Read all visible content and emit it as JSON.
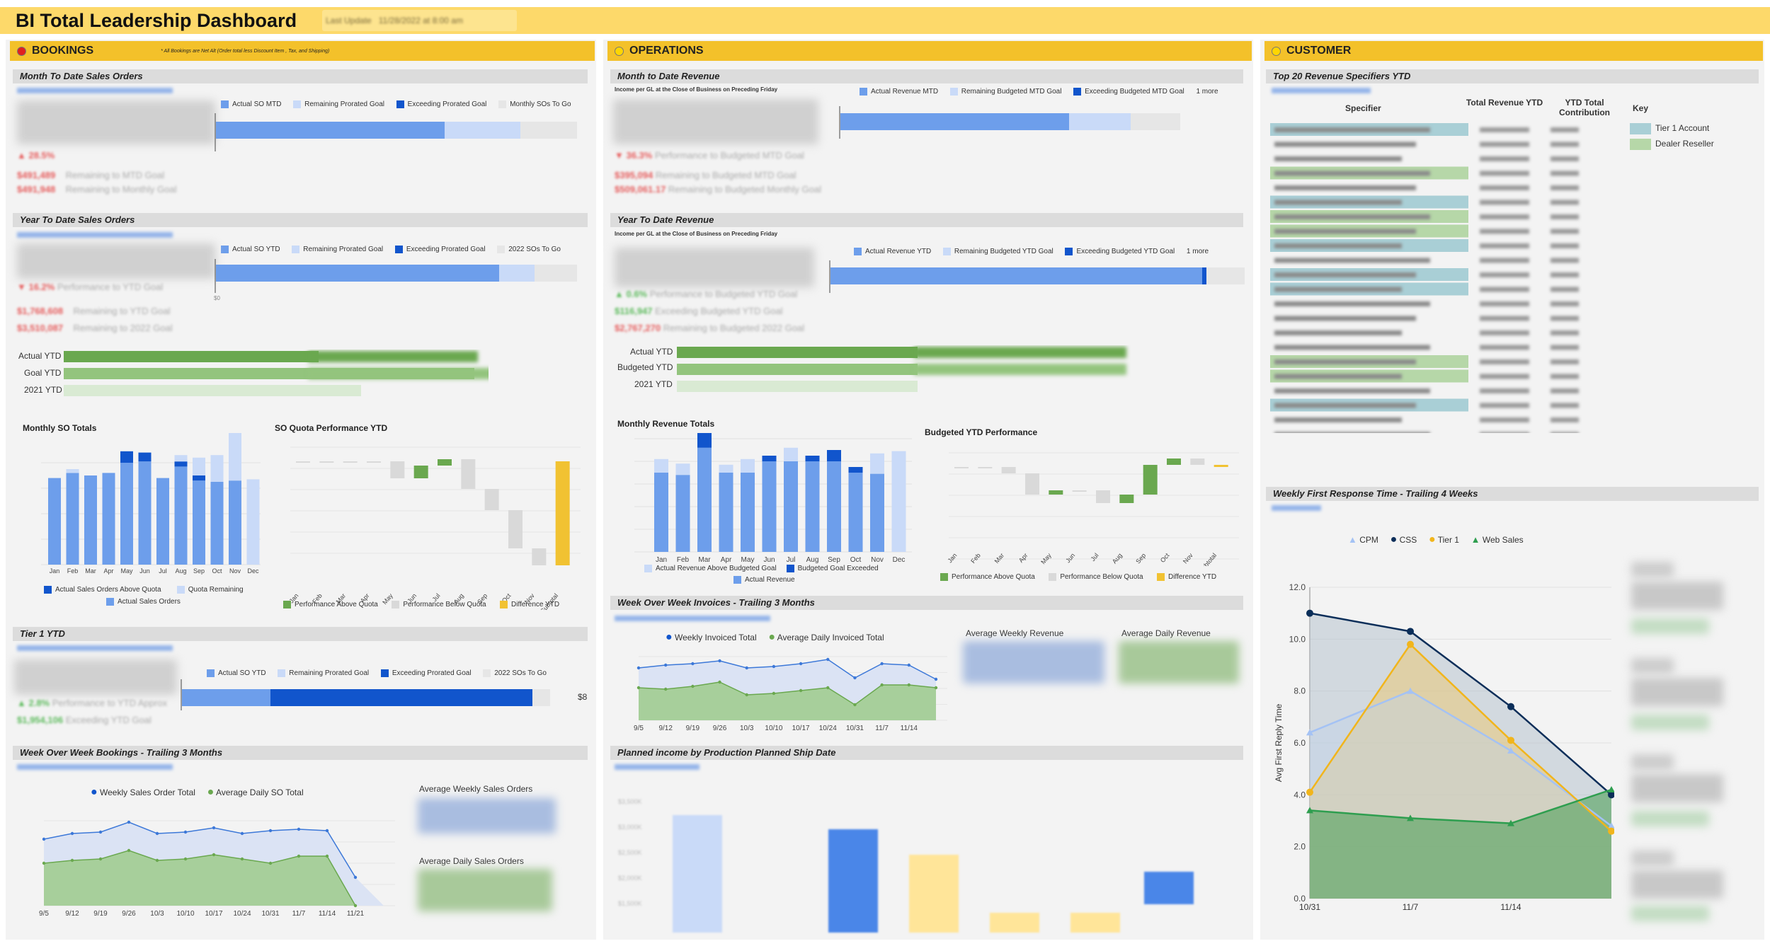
{
  "header": {
    "title": "BI Total Leadership Dashboard",
    "last_update_label": "Last Update",
    "last_update_value": "11/28/2022 at 8:00 am"
  },
  "colors": {
    "header": "#fdd96a",
    "section_head": "#f3c12a",
    "actual": "#6d9eeb",
    "remaining": "#c9daf8",
    "exceeding": "#1155cc",
    "togo": "#e6e6e6",
    "green": "#6aa84f",
    "light_green": "#b6d7a8",
    "yellow": "#f1c232",
    "grey": "#cccccc"
  },
  "bookings": {
    "title": "BOOKINGS",
    "note": "* All Bookings are Net Alt (Order total less Discount Item , Tax, and Shipping)",
    "mtd": {
      "title": "Month To Date Sales Orders",
      "legend": [
        "Actual SO MTD",
        "Remaining Prorated Goal",
        "Exceeding Prorated Goal",
        "Monthly SOs To Go"
      ]
    },
    "ytd": {
      "title": "Year To Date Sales Orders",
      "legend": [
        "Actual SO YTD",
        "Remaining Prorated Goal",
        "Exceeding Prorated Goal",
        "2022 SOs To Go"
      ],
      "bar_labels": [
        "Actual YTD",
        "Goal YTD",
        "2021 YTD"
      ]
    },
    "monthly": {
      "title": "Monthly SO Totals",
      "months": [
        "Jan",
        "Feb",
        "Mar",
        "Apr",
        "May",
        "Jun",
        "Jul",
        "Aug",
        "Sep",
        "Oct",
        "Nov",
        "Dec"
      ],
      "legend": [
        "Actual Sales Orders Above Quota",
        "Quota Remaining",
        "Actual Sales Orders"
      ]
    },
    "quota": {
      "title": "SO Quota Performance YTD",
      "months": [
        "Jan",
        "Feb",
        "Mar",
        "Apr",
        "May",
        "Jun",
        "Jul",
        "Aug",
        "Sep",
        "Oct",
        "Nov",
        "Subtotal"
      ],
      "legend": [
        "Performance Above Quota",
        "Performance Below Quota",
        "Difference YTD"
      ]
    },
    "tier1": {
      "title": "Tier 1 YTD",
      "legend": [
        "Actual SO YTD",
        "Remaining Prorated Goal",
        "Exceeding Prorated Goal",
        "2022 SOs To Go"
      ],
      "bar_end": "$8"
    },
    "wow": {
      "title": "Week Over Week Bookings - Trailing 3 Months",
      "legend": [
        "Weekly Sales Order Total",
        "Average Daily SO Total"
      ],
      "dates": [
        "9/5",
        "9/12",
        "9/19",
        "9/26",
        "10/3",
        "10/10",
        "10/17",
        "10/24",
        "10/31",
        "11/7",
        "11/14",
        "11/21"
      ],
      "avg_weekly": "Average Weekly Sales Orders",
      "avg_daily": "Average Daily Sales Orders"
    }
  },
  "operations": {
    "title": "OPERATIONS",
    "mtd": {
      "title": "Month to Date Revenue",
      "note": "Income per GL at the Close of Business on Preceding Friday",
      "legend": [
        "Actual Revenue MTD",
        "Remaining Budgeted MTD Goal",
        "Exceeding Budgeted MTD Goal"
      ],
      "more": "1 more"
    },
    "ytd": {
      "title": "Year To Date Revenue",
      "note": "Income per GL at the Close of Business on Preceding Friday",
      "legend": [
        "Actual Revenue YTD",
        "Remaining Budgeted YTD Goal",
        "Exceeding Budgeted YTD Goal"
      ],
      "more": "1 more",
      "bar_labels": [
        "Actual YTD",
        "Budgeted YTD",
        "2021 YTD"
      ]
    },
    "monthly": {
      "title": "Monthly Revenue Totals",
      "months": [
        "Jan",
        "Feb",
        "Mar",
        "Apr",
        "May",
        "Jun",
        "Jul",
        "Aug",
        "Sep",
        "Oct",
        "Nov",
        "Dec"
      ],
      "legend": [
        "Actual Revenue Above Budgeted Goal",
        "Budgeted Goal Exceeded",
        "Actual Revenue"
      ]
    },
    "budget": {
      "title": "Budgeted YTD Performance",
      "months": [
        "Jan",
        "Feb",
        "Mar",
        "Apr",
        "May",
        "Jun",
        "Jul",
        "Aug",
        "Sep",
        "Oct",
        "Nov",
        "Subtotal"
      ],
      "legend": [
        "Performance Above Quota",
        "Performance Below Quota",
        "Difference YTD"
      ]
    },
    "invoices": {
      "title": "Week Over Week Invoices - Trailing 3 Months",
      "legend": [
        "Weekly Invoiced Total",
        "Average Daily Invoiced Total"
      ],
      "dates": [
        "9/5",
        "9/12",
        "9/19",
        "9/26",
        "10/3",
        "10/10",
        "10/17",
        "10/24",
        "10/31",
        "11/7",
        "11/14"
      ],
      "avg_weekly": "Average Weekly Revenue",
      "avg_daily": "Average Daily Revenue"
    },
    "planned": {
      "title": "Planned income by Production Planned Ship Date"
    }
  },
  "customer": {
    "title": "CUSTOMER",
    "specifiers": {
      "title": "Top 20 Revenue Specifiers YTD",
      "columns": [
        "Specifier",
        "Total Revenue YTD",
        "YTD Total Contribution"
      ],
      "key_title": "Key",
      "key": [
        "Tier 1 Account",
        "Dealer Reseller"
      ]
    },
    "response": {
      "title": "Weekly First Response Time - Trailing 4 Weeks",
      "legend": [
        "CPM",
        "CSS",
        "Tier 1",
        "Web Sales"
      ],
      "ylabel": "Avg First Reply Time",
      "chart_data": {
        "type": "area",
        "x": [
          "10/31",
          "11/7",
          "11/14",
          "11/21"
        ],
        "x_labels_shown": [
          "10/31",
          "11/7",
          "11/14"
        ],
        "ylim": [
          0,
          12
        ],
        "yticks": [
          "0.0",
          "2.0",
          "4.0",
          "6.0",
          "8.0",
          "10.0",
          "12.0"
        ],
        "series": [
          {
            "name": "CPM",
            "color": "#a4c2f4",
            "values": [
              6.4,
              8.0,
              5.7,
              2.8
            ]
          },
          {
            "name": "CSS",
            "color": "#0b2e59",
            "values": [
              11.0,
              10.3,
              7.4,
              4.0
            ]
          },
          {
            "name": "Tier 1",
            "color": "#f1b51c",
            "values": [
              4.1,
              9.8,
              6.1,
              2.6
            ]
          },
          {
            "name": "Web Sales",
            "color": "#2e9e4f",
            "values": [
              3.4,
              3.1,
              2.9,
              4.2
            ]
          }
        ]
      }
    }
  }
}
